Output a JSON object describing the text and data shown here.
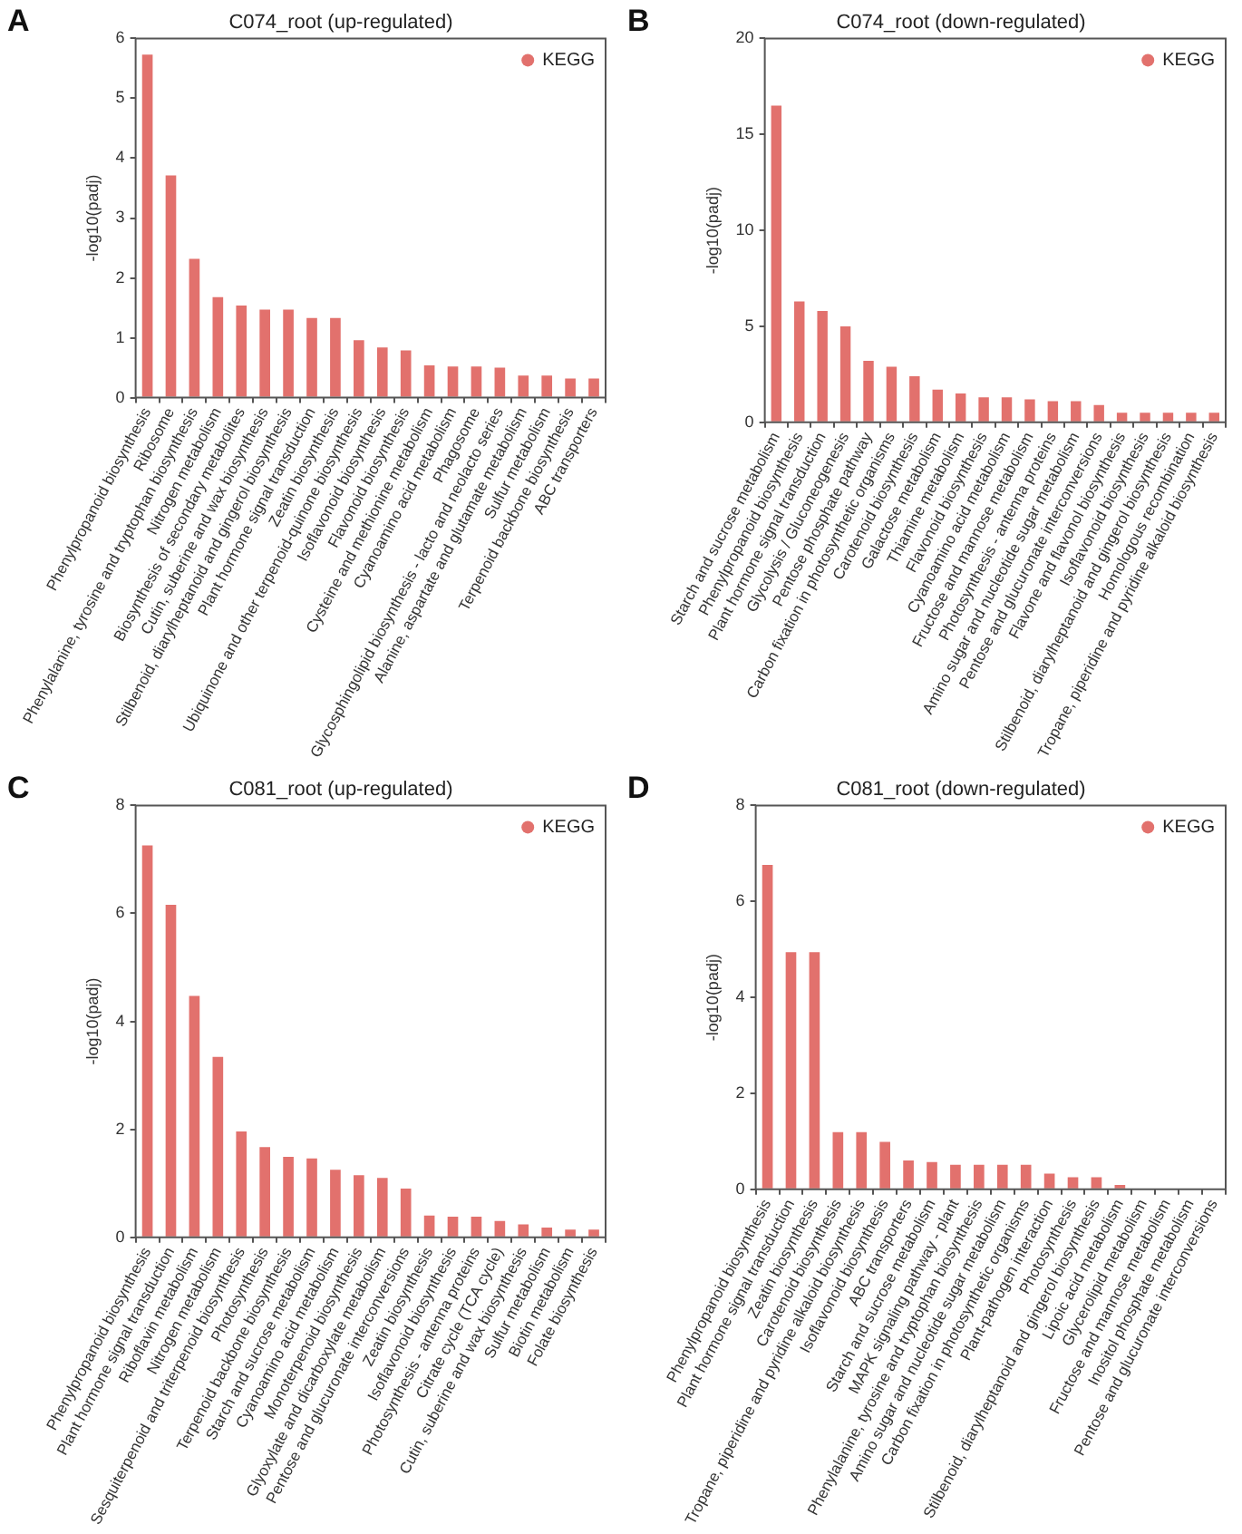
{
  "chart_data": [
    {
      "type": "bar",
      "title": "C074_root (up-regulated)",
      "ylabel": "-log10(padj)",
      "annotations": [
        "A"
      ],
      "legend": "top right",
      "grid": false,
      "ylim": [
        0,
        6
      ],
      "yticks": [
        0,
        1,
        2,
        3,
        4,
        5,
        6
      ],
      "categories": [
        "Phenylpropanoid biosynthesis",
        "Ribosome",
        "Phenylalanine, tyrosine and tryptophan biosynthesis",
        "Nitrogen metabolism",
        "Biosynthesis of secondary metabolites",
        "Cutin, suberine and wax biosynthesis",
        "Stilbenoid, diarylheptanoid and gingerol biosynthesis",
        "Plant hormone signal transduction",
        "Zeatin biosynthesis",
        "Ubiquinone and other terpenoid-quinone biosynthesis",
        "Isoflavonoid biosynthesis",
        "Flavonoid biosynthesis",
        "Cysteine and methionine metabolism",
        "Cyanoamino acid metabolism",
        "Phagosome",
        "Glycosphingolipid biosynthesis - lacto and neolacto series",
        "Alanine, aspartate and glutamate metabolism",
        "Sulfur metabolism",
        "Terpenoid backbone biosynthesis",
        "ABC transporters"
      ],
      "series": [
        {
          "name": "KEGG",
          "color": "#e2716d",
          "values": [
            5.73,
            3.71,
            2.32,
            1.68,
            1.54,
            1.47,
            1.47,
            1.33,
            1.33,
            0.96,
            0.84,
            0.79,
            0.54,
            0.52,
            0.52,
            0.5,
            0.37,
            0.37,
            0.32,
            0.32
          ]
        }
      ]
    },
    {
      "type": "bar",
      "title": "C074_root (down-regulated)",
      "ylabel": "-log10(padj)",
      "annotations": [
        "B"
      ],
      "legend": "top right",
      "grid": false,
      "ylim": [
        0,
        20
      ],
      "yticks": [
        0,
        5,
        10,
        15,
        20
      ],
      "categories": [
        "Starch and sucrose metabolism",
        "Phenylpropanoid biosynthesis",
        "Plant hormone signal transduction",
        "Glycolysis / Gluconeogenesis",
        "Pentose phosphate pathway",
        "Carbon fixation in photosynthetic organisms",
        "Carotenoid biosynthesis",
        "Galactose metabolism",
        "Thiamine metabolism",
        "Flavonoid biosynthesis",
        "Cyanoamino acid metabolism",
        "Fructose and mannose metabolism",
        "Photosynthesis - antenna proteins",
        "Amino sugar and nucleotide sugar metabolism",
        "Pentose and glucuronate interconversions",
        "Flavone and flavonol biosynthesis",
        "Isoflavonoid biosynthesis",
        "Stilbenoid, diarylheptanoid and gingerol biosynthesis",
        "Homologous recombination",
        "Tropane, piperidine and pyridine alkaloid biosynthesis"
      ],
      "series": [
        {
          "name": "KEGG",
          "color": "#e2716d",
          "values": [
            16.5,
            6.3,
            5.8,
            5.0,
            3.2,
            2.9,
            2.4,
            1.7,
            1.5,
            1.3,
            1.3,
            1.2,
            1.1,
            1.1,
            0.9,
            0.5,
            0.5,
            0.5,
            0.5,
            0.5
          ]
        }
      ]
    },
    {
      "type": "bar",
      "title": "C081_root (up-regulated)",
      "ylabel": "-log10(padj)",
      "annotations": [
        "C"
      ],
      "legend": "top right",
      "grid": false,
      "ylim": [
        0,
        8
      ],
      "yticks": [
        0,
        2,
        4,
        6,
        8
      ],
      "categories": [
        "Phenylpropanoid biosynthesis",
        "Plant hormone signal transduction",
        "Riboflavin metabolism",
        "Nitrogen metabolism",
        "Sesquiterpenoid and triterpenoid biosynthesis",
        "Photosynthesis",
        "Terpenoid backbone biosynthesis",
        "Starch and sucrose metabolism",
        "Cyanoamino acid metabolism",
        "Monoterpenoid biosynthesis",
        "Glyoxylate and dicarboxylate metabolism",
        "Pentose and glucuronate interconversions",
        "Zeatin biosynthesis",
        "Isoflavonoid biosynthesis",
        "Photosynthesis - antenna proteins",
        "Citrate cycle (TCA cycle)",
        "Cutin, suberine and wax biosynthesis",
        "Sulfur metabolism",
        "Biotin metabolism",
        "Folate biosynthesis"
      ],
      "series": [
        {
          "name": "KEGG",
          "color": "#e2716d",
          "values": [
            7.26,
            6.16,
            4.47,
            3.34,
            1.96,
            1.67,
            1.49,
            1.46,
            1.25,
            1.15,
            1.1,
            0.9,
            0.4,
            0.38,
            0.38,
            0.3,
            0.24,
            0.18,
            0.14,
            0.14
          ]
        }
      ]
    },
    {
      "type": "bar",
      "title": "C081_root (down-regulated)",
      "ylabel": "-log10(padj)",
      "annotations": [
        "D"
      ],
      "legend": "top right",
      "grid": false,
      "ylim": [
        0,
        8
      ],
      "yticks": [
        0,
        2,
        4,
        6,
        8
      ],
      "categories": [
        "Phenylpropanoid biosynthesis",
        "Plant hormone signal transduction",
        "Zeatin biosynthesis",
        "Carotenoid biosynthesis",
        "Tropane, piperidine and pyridine alkaloid biosynthesis",
        "Isoflavonoid biosynthesis",
        "ABC transporters",
        "Starch and sucrose metabolism",
        "MAPK signaling pathway - plant",
        "Phenylalanine, tyrosine and tryptophan biosynthesis",
        "Amino sugar and nucleotide sugar metabolism",
        "Carbon fixation in photosynthetic organisms",
        "Plant-pathogen interaction",
        "Photosynthesis",
        "Stilbenoid, diarylheptanoid and gingerol biosynthesis",
        "Lipoic acid metabolism",
        "Glycerolipid metabolism",
        "Fructose and mannose metabolism",
        "Inositol phosphate metabolism",
        "Pentose and glucuronate interconversions"
      ],
      "series": [
        {
          "name": "KEGG",
          "color": "#e2716d",
          "values": [
            6.76,
            4.94,
            4.94,
            1.19,
            1.19,
            0.99,
            0.6,
            0.57,
            0.51,
            0.51,
            0.51,
            0.51,
            0.33,
            0.25,
            0.25,
            0.09,
            null,
            null,
            null,
            null
          ]
        }
      ]
    }
  ]
}
